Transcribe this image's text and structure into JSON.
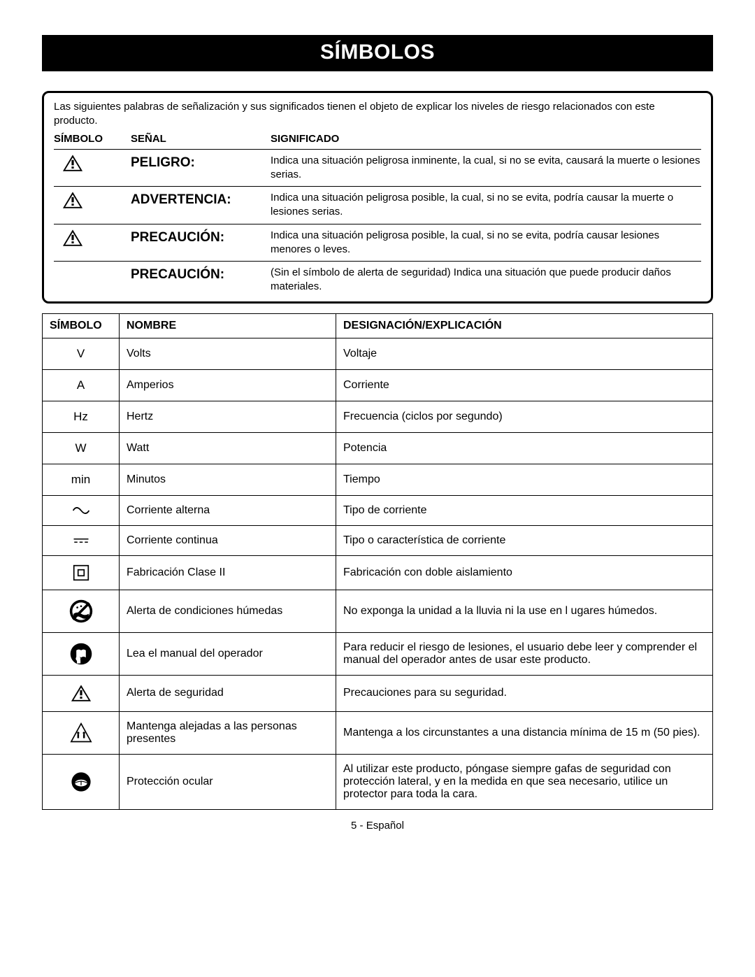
{
  "title": "SÍMBOLOS",
  "intro": "Las siguientes palabras de señalización y sus significados tienen el objeto de explicar los niveles de riesgo relacionados con este producto.",
  "signal_headers": {
    "symbol": "SÍMBOLO",
    "signal": "SEÑAL",
    "meaning": "SIGNIFICADO"
  },
  "signals": [
    {
      "icon": "warn",
      "signal": "PELIGRO:",
      "meaning": "Indica una situación peligrosa inminente, la cual, si no se evita, causará la muerte o lesiones serias."
    },
    {
      "icon": "warn",
      "signal": "ADVERTENCIA:",
      "meaning": "Indica una situación peligrosa posible, la cual, si no se evita, podría causar la muerte o lesiones serias."
    },
    {
      "icon": "warn",
      "signal": "PRECAUCIÓN:",
      "meaning": "Indica una situación peligrosa posible, la cual, si no se evita, podría causar lesiones menores o leves."
    },
    {
      "icon": "",
      "signal": "PRECAUCIÓN:",
      "meaning": "(Sin el símbolo de alerta de seguridad) Indica una situación que puede producir daños materiales."
    }
  ],
  "table_headers": {
    "symbol": "SÍMBOLO",
    "name": "NOMBRE",
    "desc": "DESIGNACIÓN/EXPLICACIÓN"
  },
  "table_rows": [
    {
      "sym_text": "V",
      "icon": "",
      "name": "Volts",
      "desc": "Voltaje"
    },
    {
      "sym_text": "A",
      "icon": "",
      "name": "Amperios",
      "desc": "Corriente"
    },
    {
      "sym_text": "Hz",
      "icon": "",
      "name": "Hertz",
      "desc": "Frecuencia (ciclos por segundo)"
    },
    {
      "sym_text": "W",
      "icon": "",
      "name": "Watt",
      "desc": "Potencia"
    },
    {
      "sym_text": "min",
      "icon": "",
      "name": "Minutos",
      "desc": "Tiempo"
    },
    {
      "sym_text": "",
      "icon": "ac",
      "name": "Corriente alterna",
      "desc": "Tipo de corriente"
    },
    {
      "sym_text": "",
      "icon": "dc",
      "name": "Corriente continua",
      "desc": "Tipo o característica de corriente"
    },
    {
      "sym_text": "",
      "icon": "class2",
      "name": "Fabricación Clase II",
      "desc": "Fabricación con doble aislamiento"
    },
    {
      "sym_text": "",
      "icon": "wet",
      "name": "Alerta de condiciones húmedas",
      "desc": "No exponga la unidad a la lluvia ni la use en l ugares húmedos."
    },
    {
      "sym_text": "",
      "icon": "manual",
      "name": "Lea el manual del operador",
      "desc": "Para reducir el riesgo de lesiones, el usuario debe leer y comprender el manual del operador antes de usar este producto."
    },
    {
      "sym_text": "",
      "icon": "warn",
      "name": "Alerta de seguridad",
      "desc": "Precauciones para su seguridad."
    },
    {
      "sym_text": "",
      "icon": "keepaway",
      "name": "Mantenga alejadas a las personas presentes",
      "desc": "Mantenga a los circunstantes a una distancia mínima de 15 m (50 pies)."
    },
    {
      "sym_text": "",
      "icon": "goggles",
      "name": "Protección ocular",
      "desc": "Al utilizar este producto, póngase siempre gafas de seguridad con protección lateral, y en la medida en que sea necesario, utilice un protector para toda la cara."
    }
  ],
  "footer": "5 - Español",
  "colors": {
    "black": "#000000",
    "white": "#ffffff"
  }
}
